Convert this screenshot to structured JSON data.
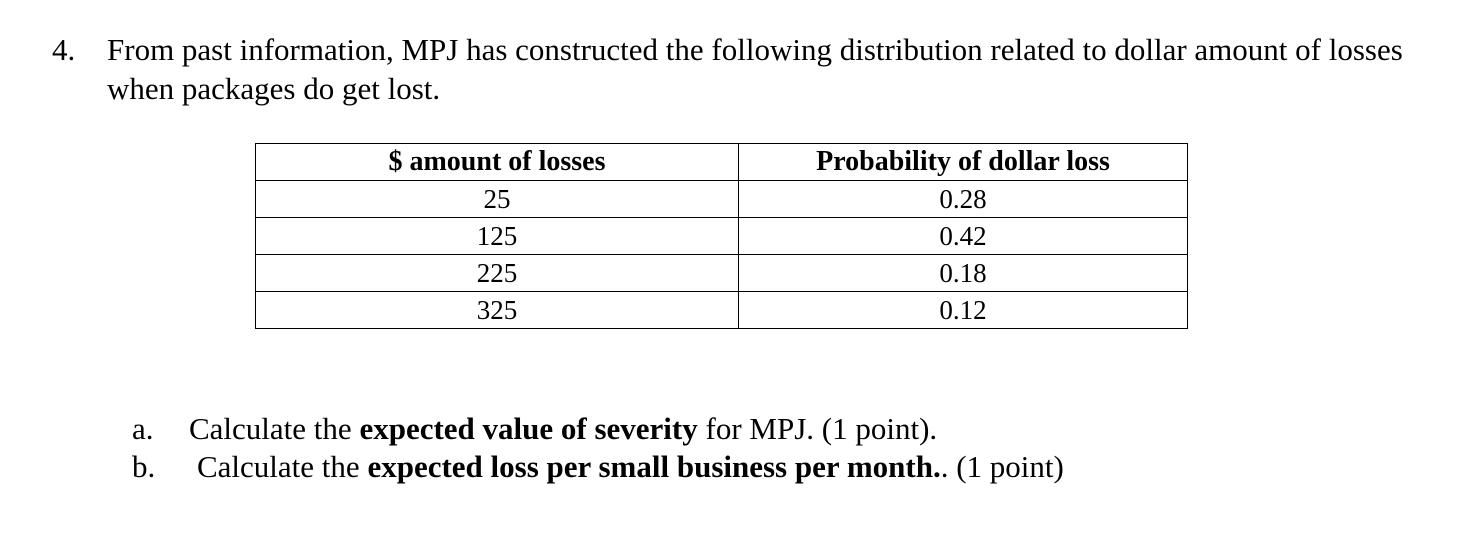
{
  "question": {
    "number": "4.",
    "text": "From past information, MPJ has constructed the following distribution related to dollar amount of losses when packages do get lost."
  },
  "table": {
    "headers": [
      "$ amount of losses",
      "Probability of dollar loss"
    ],
    "rows": [
      [
        "25",
        "0.28"
      ],
      [
        "125",
        "0.42"
      ],
      [
        "225",
        "0.18"
      ],
      [
        "325",
        "0.12"
      ]
    ]
  },
  "subquestions": [
    {
      "marker": "a.",
      "prefix": "Calculate the ",
      "bold": "expected value of severity",
      "suffix": " for MPJ. (1 point)."
    },
    {
      "marker": "b.",
      "prefix": "Calculate the ",
      "bold": "expected loss per small business per month.",
      "suffix": ". (1 point)"
    }
  ]
}
